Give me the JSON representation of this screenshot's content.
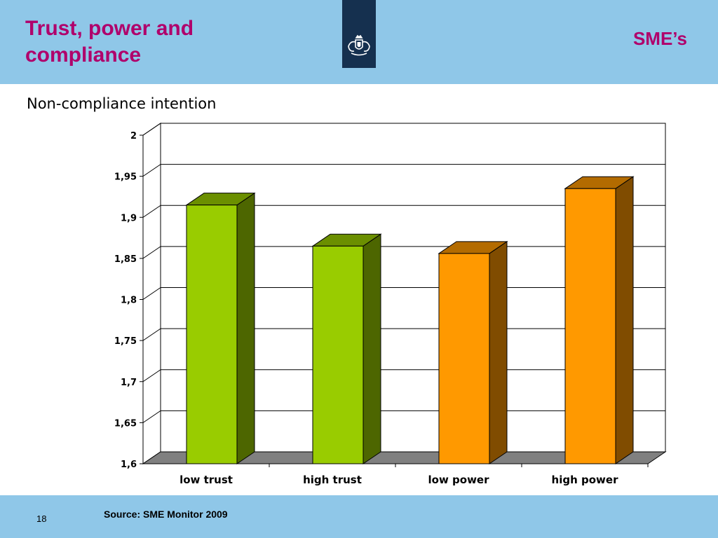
{
  "header": {
    "title": "Trust, power and compliance",
    "section": "SME’s",
    "logo_icon": "royal-coat-of-arms-icon"
  },
  "slide": {
    "subtitle": "Non-compliance intention",
    "source": "Source: SME Monitor 2009",
    "page_number": "18"
  },
  "colors": {
    "header_bg": "#8fc7e8",
    "title": "#b0006b",
    "logo_bg": "#15304f",
    "green_front": "#99cc00",
    "green_side": "#4d6600",
    "orange_front": "#ff9900",
    "orange_side": "#804c00"
  },
  "chart_data": {
    "type": "bar",
    "style": "3d-column",
    "categories": [
      "low trust",
      "high trust",
      "low power",
      "high power"
    ],
    "values": [
      1.915,
      1.865,
      1.856,
      1.935
    ],
    "bar_colors": [
      "green",
      "green",
      "orange",
      "orange"
    ],
    "ylim": [
      1.6,
      2
    ],
    "y_ticks": [
      1.6,
      1.65,
      1.7,
      1.75,
      1.8,
      1.85,
      1.9,
      1.95,
      2
    ],
    "y_tick_labels": [
      "1,6",
      "1,65",
      "1,7",
      "1,75",
      "1,8",
      "1,85",
      "1,9",
      "1,95",
      "2"
    ],
    "grid": true,
    "legend": "none",
    "title": "",
    "xlabel": "",
    "ylabel": ""
  }
}
